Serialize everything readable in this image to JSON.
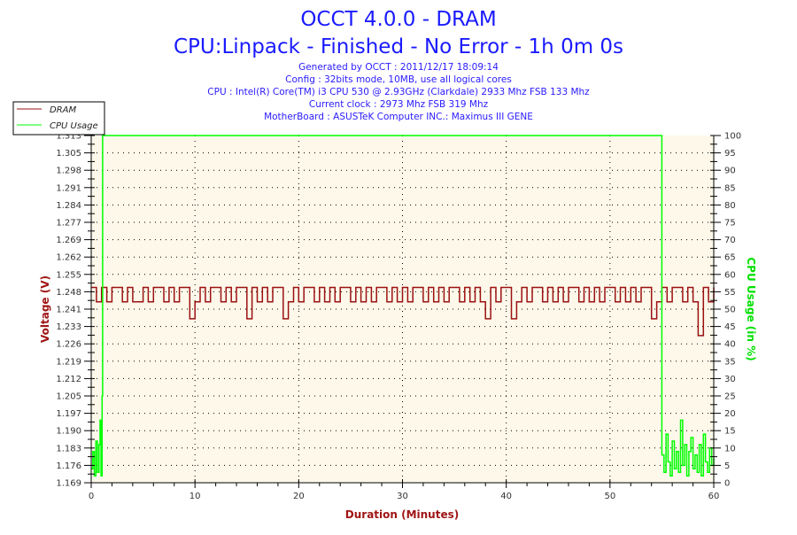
{
  "chart_data": {
    "type": "line",
    "title": "OCCT 4.0.0 - DRAM",
    "subtitle": "CPU:Linpack - Finished - No Error - 1h 0m 0s",
    "info_lines": [
      "Generated by OCCT : 2011/12/17 18:09:14",
      "Config : 32bits mode, 10MB, use all logical cores",
      "CPU : Intel(R) Core(TM) i3 CPU 530 @ 2.93GHz (Clarkdale) 2933 Mhz FSB 133 Mhz",
      "Current clock : 2973 Mhz FSB 319 Mhz",
      "MotherBoard : ASUSTeK Computer INC.: Maximus III GENE"
    ],
    "xlabel": "Duration (Minutes)",
    "ylabel_left": "Voltage (V)",
    "ylabel_right": "CPU Usage (in %)",
    "xlim": [
      0,
      60
    ],
    "ylim_left": [
      1.169,
      1.313
    ],
    "ylim_right": [
      0,
      100
    ],
    "x_ticks": [
      "0",
      "10",
      "20",
      "30",
      "40",
      "50",
      "60"
    ],
    "y_left_ticks": [
      "1.169",
      "1.176",
      "1.183",
      "1.190",
      "1.197",
      "1.205",
      "1.212",
      "1.219",
      "1.226",
      "1.233",
      "1.241",
      "1.248",
      "1.255",
      "1.262",
      "1.269",
      "1.277",
      "1.284",
      "1.291",
      "1.298",
      "1.305",
      "1.313"
    ],
    "y_right_ticks": [
      "0",
      "5",
      "10",
      "15",
      "20",
      "25",
      "30",
      "35",
      "40",
      "45",
      "50",
      "55",
      "60",
      "65",
      "70",
      "75",
      "80",
      "85",
      "90",
      "95",
      "100"
    ],
    "grid": true,
    "legend_placement": "top-left",
    "colors": {
      "dram": "#9b1111",
      "cpu": "#00ff00",
      "plot_bg": "#fdf8ea",
      "title": "#1a1aff",
      "left_axis": "#a01515",
      "right_axis": "#00e000"
    },
    "series": [
      {
        "name": "DRAM",
        "axis": "left",
        "x": [
          0,
          0.5,
          1,
          1.5,
          2,
          2.5,
          3,
          3.5,
          4,
          4.5,
          5,
          5.5,
          6,
          6.5,
          7,
          7.5,
          8,
          8.5,
          9,
          9.5,
          10,
          10.5,
          11,
          11.5,
          12,
          12.5,
          13,
          13.5,
          14,
          14.5,
          15,
          15.5,
          16,
          16.5,
          17,
          17.5,
          18,
          18.5,
          19,
          19.5,
          20,
          20.5,
          21,
          21.5,
          22,
          22.5,
          23,
          23.5,
          24,
          24.5,
          25,
          25.5,
          26,
          26.5,
          27,
          27.5,
          28,
          28.5,
          29,
          29.5,
          30,
          30.5,
          31,
          31.5,
          32,
          32.5,
          33,
          33.5,
          34,
          34.5,
          35,
          35.5,
          36,
          36.5,
          37,
          37.5,
          38,
          38.5,
          39,
          39.5,
          40,
          40.5,
          41,
          41.5,
          42,
          42.5,
          43,
          43.5,
          44,
          44.5,
          45,
          45.5,
          46,
          46.5,
          47,
          47.5,
          48,
          48.5,
          49,
          49.5,
          50,
          50.5,
          51,
          51.5,
          52,
          52.5,
          53,
          53.5,
          54,
          54.5,
          55,
          55.5,
          56,
          56.5,
          57,
          57.5,
          58,
          58.5,
          59,
          59.5,
          60
        ],
        "values": [
          1.25,
          1.244,
          1.25,
          1.244,
          1.25,
          1.25,
          1.244,
          1.25,
          1.244,
          1.244,
          1.25,
          1.244,
          1.25,
          1.25,
          1.244,
          1.25,
          1.244,
          1.25,
          1.25,
          1.237,
          1.244,
          1.25,
          1.244,
          1.25,
          1.25,
          1.244,
          1.25,
          1.244,
          1.25,
          1.25,
          1.237,
          1.25,
          1.244,
          1.25,
          1.244,
          1.25,
          1.25,
          1.237,
          1.244,
          1.25,
          1.244,
          1.25,
          1.25,
          1.244,
          1.25,
          1.244,
          1.25,
          1.244,
          1.25,
          1.25,
          1.244,
          1.25,
          1.244,
          1.25,
          1.244,
          1.25,
          1.25,
          1.244,
          1.25,
          1.244,
          1.25,
          1.244,
          1.25,
          1.25,
          1.244,
          1.25,
          1.244,
          1.25,
          1.244,
          1.25,
          1.25,
          1.244,
          1.25,
          1.244,
          1.25,
          1.244,
          1.237,
          1.25,
          1.244,
          1.25,
          1.25,
          1.237,
          1.244,
          1.25,
          1.244,
          1.25,
          1.25,
          1.244,
          1.25,
          1.244,
          1.25,
          1.244,
          1.25,
          1.25,
          1.244,
          1.25,
          1.244,
          1.25,
          1.244,
          1.25,
          1.25,
          1.244,
          1.25,
          1.244,
          1.25,
          1.244,
          1.25,
          1.25,
          1.237,
          1.244,
          1.25,
          1.244,
          1.25,
          1.25,
          1.244,
          1.25,
          1.244,
          1.23,
          1.25,
          1.244,
          1.25
        ]
      },
      {
        "name": "CPU Usage",
        "axis": "right",
        "x": [
          0,
          0.15,
          0.3,
          0.45,
          0.6,
          0.75,
          0.85,
          0.95,
          1.05,
          1.1,
          54.9,
          55.0,
          55.2,
          55.4,
          55.6,
          55.8,
          56.0,
          56.2,
          56.4,
          56.6,
          56.8,
          57.0,
          57.2,
          57.4,
          57.6,
          57.8,
          58.0,
          58.2,
          58.4,
          58.6,
          58.8,
          59.0,
          59.2,
          59.4,
          59.6,
          59.8,
          60
        ],
        "values": [
          4,
          9,
          2,
          12,
          3,
          11,
          18,
          2,
          25,
          100,
          100,
          8,
          3,
          14,
          6,
          2,
          12,
          4,
          9,
          3,
          18,
          5,
          11,
          2,
          9,
          13,
          4,
          8,
          3,
          11,
          2,
          14,
          6,
          3,
          10,
          5,
          7
        ]
      }
    ]
  }
}
